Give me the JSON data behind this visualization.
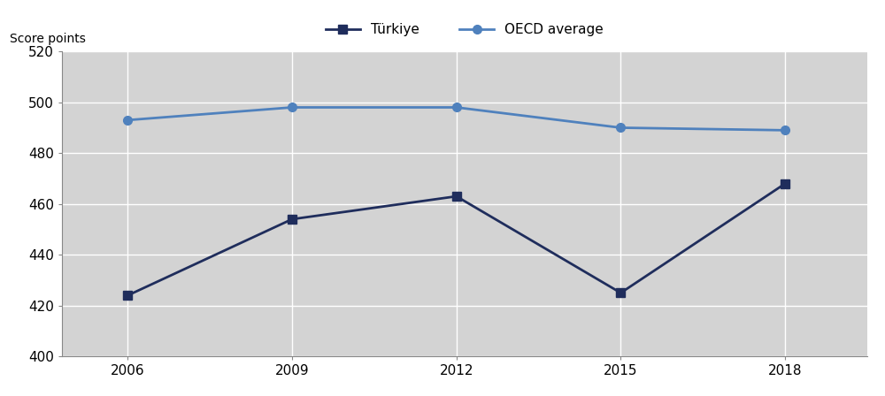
{
  "years": [
    2006,
    2009,
    2012,
    2015,
    2018
  ],
  "turkiye_values": [
    424,
    454,
    463,
    425,
    468
  ],
  "oecd_values": [
    493,
    498,
    498,
    490,
    489
  ],
  "turkiye_label": "Türkiye",
  "oecd_label": "OECD average",
  "ylabel": "Score points",
  "ylim": [
    400,
    520
  ],
  "yticks": [
    400,
    420,
    440,
    460,
    480,
    500,
    520
  ],
  "plot_bg": "#d3d3d3",
  "legend_bg": "#d3d3d3",
  "outer_bg": "#ffffff",
  "turkiye_color": "#1f2d5c",
  "oecd_color": "#4f81bd",
  "grid_color": "#ffffff",
  "linewidth": 2.0,
  "marker_size": 7,
  "legend_fontsize": 11,
  "tick_fontsize": 11,
  "ylabel_fontsize": 10
}
